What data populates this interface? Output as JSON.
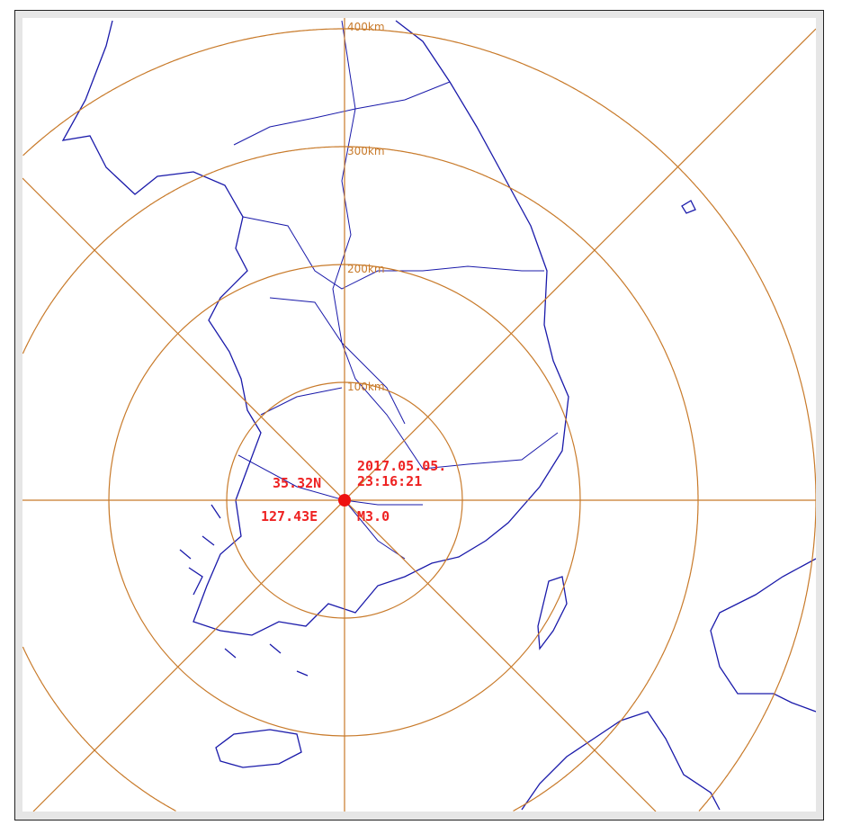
{
  "rings": [
    {
      "distance_km": 100,
      "label": "100km"
    },
    {
      "distance_km": 200,
      "label": "200km"
    },
    {
      "distance_km": 300,
      "label": "300km"
    },
    {
      "distance_km": 400,
      "label": "400km"
    }
  ],
  "event": {
    "latitude": "35.32N",
    "longitude": "127.43E",
    "date": "2017.05.05.",
    "time": "23:16:21",
    "magnitude": "M3.0"
  },
  "colors": {
    "rings": "#c87a2a",
    "coastline": "#1a1aaa",
    "epicenter": "#ee1111",
    "label_text": "#ee2222"
  }
}
